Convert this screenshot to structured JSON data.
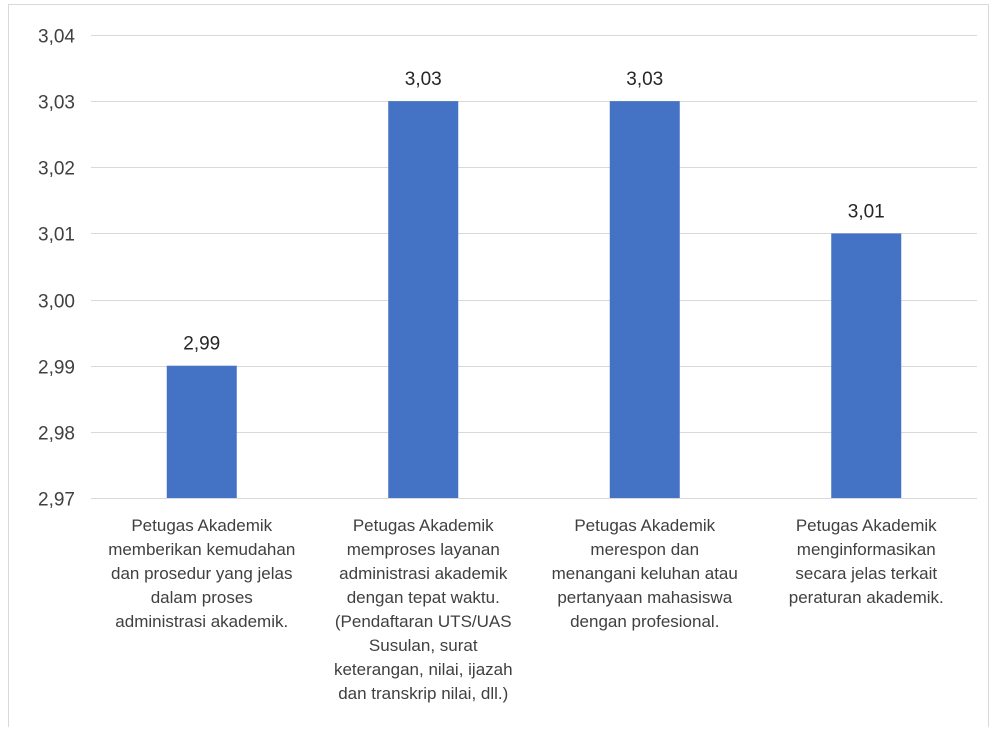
{
  "chart_data": {
    "type": "bar",
    "categories": [
      "Petugas Akademik memberikan kemudahan dan prosedur yang jelas dalam proses administrasi akademik.",
      "Petugas Akademik memproses layanan administrasi akademik dengan tepat waktu. (Pendaftaran UTS/UAS Susulan, surat keterangan, nilai, ijazah dan transkrip nilai, dll.)",
      "Petugas Akademik merespon dan menangani keluhan atau pertanyaan mahasiswa dengan profesional.",
      "Petugas Akademik menginformasikan secara jelas terkait peraturan akademik."
    ],
    "category_lines": [
      [
        "Petugas Akademik",
        "memberikan kemudahan",
        "dan prosedur yang jelas",
        "dalam proses",
        "administrasi akademik."
      ],
      [
        "Petugas Akademik",
        "memproses layanan",
        "administrasi akademik",
        "dengan tepat waktu.",
        "(Pendaftaran UTS/UAS",
        "Susulan, surat",
        "keterangan, nilai, ijazah",
        "dan transkrip nilai, dll.)"
      ],
      [
        "Petugas Akademik",
        "merespon dan",
        "menangani keluhan atau",
        "pertanyaan mahasiswa",
        "dengan profesional."
      ],
      [
        "Petugas Akademik",
        "menginformasikan",
        "secara jelas terkait",
        "peraturan akademik."
      ]
    ],
    "values": [
      2.99,
      3.03,
      3.03,
      3.01
    ],
    "data_labels": [
      "2,99",
      "3,03",
      "3,03",
      "3,01"
    ],
    "ylim": [
      2.97,
      3.04
    ],
    "y_ticks": [
      2.97,
      2.98,
      2.99,
      3.0,
      3.01,
      3.02,
      3.03,
      3.04
    ],
    "y_tick_labels": [
      "2,97",
      "2,98",
      "2,99",
      "3,00",
      "3,01",
      "3,02",
      "3,03",
      "3,04"
    ],
    "title": "",
    "xlabel": "",
    "ylabel": "",
    "grid": true,
    "legend": "none",
    "colors": {
      "bar": "#4472c4",
      "grid": "#d9d9d9",
      "text": "#404040",
      "label": "#262626"
    }
  }
}
